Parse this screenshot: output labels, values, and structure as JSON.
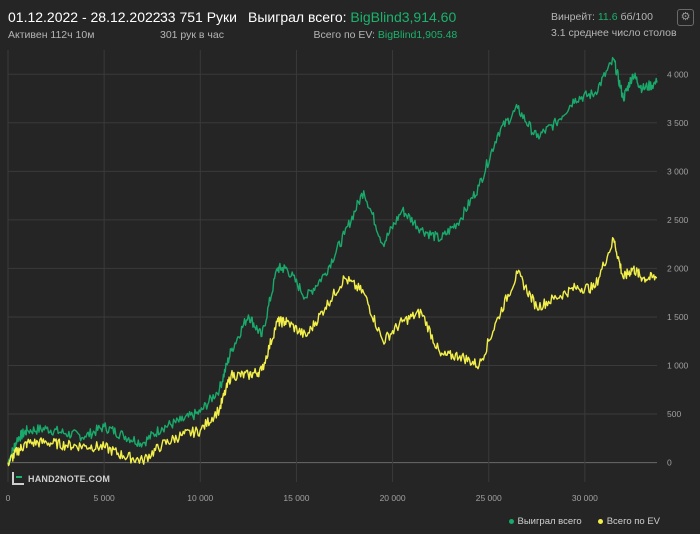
{
  "header": {
    "date_range": "01.12.2022 - 28.12.2022",
    "active": "Активен 112ч 10м",
    "hands": "33 751 Руки",
    "hands_per_hour": "301 рук в час",
    "won_label": "Выиграл всего:",
    "won_value": "BigBlind3,914.60",
    "ev_label": "Всего по EV:",
    "ev_value": "BigBlind1,905.48",
    "winrate_label": "Винрейт:",
    "winrate_value": "11.6",
    "winrate_unit": "бб/100",
    "tables": "3.1 среднее число столов"
  },
  "logo_text": "HAND2NOTE.COM",
  "settings_icon": "gear-icon",
  "colors": {
    "won": "#19a96b",
    "ev": "#f2ef4a",
    "grid": "#3a3a3a",
    "text": "#a0a0a0"
  },
  "chart_data": {
    "type": "line",
    "xlim": [
      0,
      33751
    ],
    "ylim": [
      -200,
      4250
    ],
    "x_ticks": [
      0,
      5000,
      10000,
      15000,
      20000,
      25000,
      30000
    ],
    "x_tick_labels": [
      "0",
      "5 000",
      "10 000",
      "15 000",
      "20 000",
      "25 000",
      "30 000"
    ],
    "y_ticks": [
      0,
      500,
      1000,
      1500,
      2000,
      2500,
      3000,
      3500,
      4000
    ],
    "y_tick_labels": [
      "0",
      "500",
      "1 000",
      "1 500",
      "2 000",
      "2 500",
      "3 000",
      "3 500",
      "4 000"
    ],
    "grid": true,
    "legend_position": "bottom-right",
    "x": [
      0,
      500,
      1000,
      2000,
      3000,
      4000,
      5000,
      6000,
      7000,
      8000,
      9000,
      10000,
      11000,
      11600,
      12500,
      13200,
      14000,
      14500,
      15500,
      16500,
      17500,
      18500,
      19500,
      20500,
      21500,
      22500,
      23500,
      24500,
      25500,
      26500,
      27500,
      28500,
      29500,
      30500,
      31500,
      32000,
      32500,
      33000,
      33751
    ],
    "series": [
      {
        "name": "Выиграл всего",
        "values": [
          0,
          250,
          330,
          350,
          300,
          270,
          370,
          280,
          200,
          360,
          430,
          520,
          760,
          1150,
          1520,
          1300,
          2000,
          2000,
          1700,
          1950,
          2350,
          2800,
          2250,
          2600,
          2400,
          2300,
          2500,
          2850,
          3400,
          3650,
          3350,
          3500,
          3750,
          3800,
          4150,
          3750,
          4000,
          3850,
          3914.6
        ]
      },
      {
        "name": "Всего по EV",
        "values": [
          0,
          120,
          200,
          210,
          180,
          170,
          160,
          70,
          20,
          180,
          280,
          330,
          550,
          900,
          900,
          950,
          1450,
          1450,
          1300,
          1600,
          1900,
          1750,
          1250,
          1450,
          1550,
          1100,
          1100,
          1000,
          1500,
          1950,
          1600,
          1700,
          1800,
          1800,
          2300,
          1900,
          2000,
          1900,
          1905.48
        ]
      }
    ]
  }
}
